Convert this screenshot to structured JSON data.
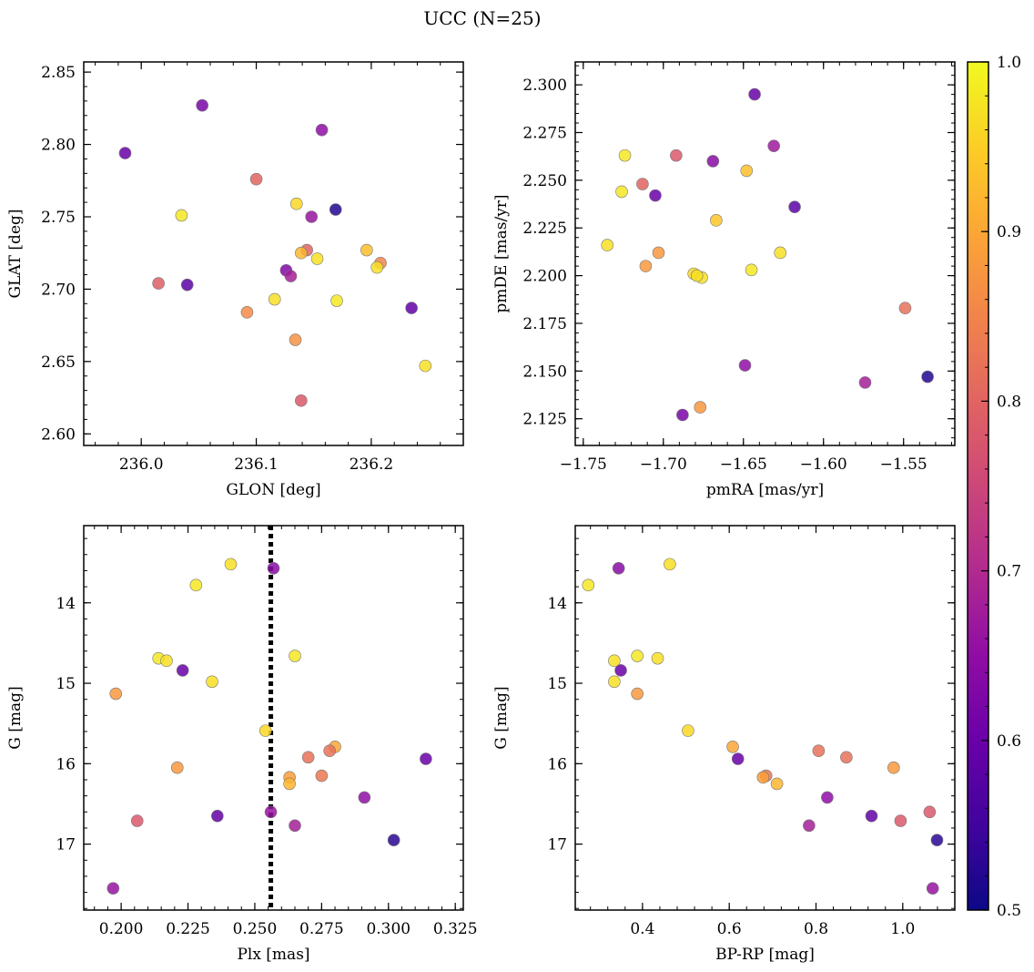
{
  "figure_title": "UCC (N=25)",
  "colorbar": {
    "range": [
      0.5,
      1.0
    ],
    "ticks": [
      "0.5",
      "0.6",
      "0.7",
      "0.8",
      "0.9",
      "1.0"
    ],
    "colormap": "plasma"
  },
  "chart_data": [
    {
      "type": "scatter",
      "id": "glon-glat",
      "xlabel": "GLON [deg]",
      "ylabel": "GLAT [deg]",
      "xlim": [
        235.95,
        236.28
      ],
      "ylim": [
        2.592,
        2.857
      ],
      "xticks": [
        236.0,
        236.1,
        236.2
      ],
      "xtick_labels": [
        "236.0",
        "236.1",
        "236.2"
      ],
      "yticks": [
        2.6,
        2.65,
        2.7,
        2.75,
        2.8,
        2.85
      ],
      "ytick_labels": [
        "2.60",
        "2.65",
        "2.70",
        "2.75",
        "2.80",
        "2.85"
      ],
      "x": [
        235.986,
        236.053,
        236.157,
        236.1,
        236.035,
        236.169,
        236.135,
        236.148,
        236.144,
        236.139,
        236.153,
        236.196,
        236.208,
        236.205,
        236.015,
        236.04,
        236.126,
        236.13,
        236.116,
        236.092,
        236.17,
        236.235,
        236.134,
        236.247,
        236.139
      ],
      "y": [
        2.794,
        2.827,
        2.81,
        2.776,
        2.751,
        2.755,
        2.759,
        2.75,
        2.727,
        2.725,
        2.721,
        2.727,
        2.718,
        2.715,
        2.704,
        2.703,
        2.713,
        2.709,
        2.693,
        2.684,
        2.692,
        2.687,
        2.665,
        2.647,
        2.623
      ],
      "membership": [
        0.6,
        0.62,
        0.65,
        0.8,
        0.98,
        0.52,
        0.96,
        0.66,
        0.8,
        0.92,
        0.97,
        0.93,
        0.85,
        0.97,
        0.79,
        0.58,
        0.63,
        0.68,
        0.97,
        0.86,
        0.98,
        0.59,
        0.87,
        0.97,
        0.78
      ]
    },
    {
      "type": "scatter",
      "id": "pmra-pmde",
      "xlabel": "pmRA [mas/yr]",
      "ylabel": "pmDE [mas/yr]",
      "xlim": [
        -1.755,
        -1.518
      ],
      "ylim": [
        2.111,
        2.312
      ],
      "xticks": [
        -1.75,
        -1.7,
        -1.65,
        -1.6,
        -1.55
      ],
      "xtick_labels": [
        "−1.75",
        "−1.70",
        "−1.65",
        "−1.60",
        "−1.55"
      ],
      "yticks": [
        2.125,
        2.15,
        2.175,
        2.2,
        2.225,
        2.25,
        2.275,
        2.3
      ],
      "ytick_labels": [
        "2.125",
        "2.150",
        "2.175",
        "2.200",
        "2.225",
        "2.250",
        "2.275",
        "2.300"
      ],
      "x": [
        -1.643,
        -1.724,
        -1.692,
        -1.631,
        -1.669,
        -1.648,
        -1.713,
        -1.726,
        -1.705,
        -1.618,
        -1.667,
        -1.735,
        -1.627,
        -1.703,
        -1.711,
        -1.681,
        -1.676,
        -1.645,
        -1.549,
        -1.535,
        -1.649,
        -1.574,
        -1.677,
        -1.688,
        -1.679
      ],
      "y": [
        2.295,
        2.263,
        2.263,
        2.268,
        2.26,
        2.255,
        2.248,
        2.244,
        2.242,
        2.236,
        2.229,
        2.216,
        2.212,
        2.212,
        2.205,
        2.201,
        2.199,
        2.203,
        2.183,
        2.147,
        2.153,
        2.144,
        2.131,
        2.127,
        2.2
      ],
      "membership": [
        0.6,
        0.98,
        0.78,
        0.67,
        0.64,
        0.93,
        0.8,
        0.98,
        0.6,
        0.58,
        0.94,
        0.97,
        0.97,
        0.88,
        0.88,
        0.96,
        0.97,
        0.98,
        0.82,
        0.52,
        0.65,
        0.68,
        0.88,
        0.62,
        0.97
      ]
    },
    {
      "type": "scatter",
      "id": "plx-g",
      "xlabel": "Plx [mas]",
      "ylabel": "G [mag]",
      "xlim": [
        0.186,
        0.328
      ],
      "ylim": [
        17.82,
        13.04
      ],
      "y_inverted": true,
      "xticks": [
        0.2,
        0.225,
        0.25,
        0.275,
        0.3,
        0.325
      ],
      "xtick_labels": [
        "0.200",
        "0.225",
        "0.250",
        "0.275",
        "0.300",
        "0.325"
      ],
      "yticks": [
        14,
        15,
        16,
        17
      ],
      "ytick_labels": [
        "14",
        "15",
        "16",
        "17"
      ],
      "vline": 0.256,
      "x": [
        0.241,
        0.257,
        0.228,
        0.214,
        0.217,
        0.265,
        0.223,
        0.234,
        0.198,
        0.254,
        0.28,
        0.278,
        0.27,
        0.314,
        0.221,
        0.263,
        0.275,
        0.263,
        0.291,
        0.236,
        0.256,
        0.206,
        0.265,
        0.302,
        0.197
      ],
      "y": [
        13.52,
        13.57,
        13.78,
        14.69,
        14.72,
        14.66,
        14.84,
        14.98,
        15.13,
        15.59,
        15.79,
        15.84,
        15.92,
        15.94,
        16.05,
        16.17,
        16.15,
        16.25,
        16.42,
        16.65,
        16.6,
        16.71,
        16.77,
        16.95,
        17.55
      ],
      "membership": [
        0.97,
        0.64,
        0.98,
        0.98,
        0.97,
        0.98,
        0.6,
        0.97,
        0.88,
        0.96,
        0.9,
        0.82,
        0.82,
        0.6,
        0.88,
        0.89,
        0.83,
        0.92,
        0.65,
        0.59,
        0.66,
        0.78,
        0.68,
        0.53,
        0.66
      ]
    },
    {
      "type": "scatter",
      "id": "bprp-g",
      "xlabel": "BP-RP [mag]",
      "ylabel": "G [mag]",
      "xlim": [
        0.245,
        1.12
      ],
      "ylim": [
        17.82,
        13.04
      ],
      "y_inverted": true,
      "xticks": [
        0.4,
        0.6,
        0.8,
        1.0
      ],
      "xtick_labels": [
        "0.4",
        "0.6",
        "0.8",
        "1.0"
      ],
      "yticks": [
        14,
        15,
        16,
        17
      ],
      "ytick_labels": [
        "14",
        "15",
        "16",
        "17"
      ],
      "x": [
        0.463,
        0.345,
        0.275,
        0.335,
        0.388,
        0.435,
        0.35,
        0.335,
        0.388,
        0.505,
        0.608,
        0.806,
        0.87,
        0.62,
        0.979,
        0.685,
        0.678,
        0.71,
        0.826,
        0.928,
        1.062,
        0.995,
        0.784,
        1.079,
        1.069
      ],
      "y": [
        13.52,
        13.57,
        13.78,
        14.72,
        14.66,
        14.69,
        14.84,
        14.98,
        15.13,
        15.59,
        15.79,
        15.84,
        15.92,
        15.94,
        16.05,
        16.15,
        16.17,
        16.25,
        16.42,
        16.65,
        16.6,
        16.71,
        16.77,
        16.95,
        17.55
      ],
      "membership": [
        0.97,
        0.64,
        0.98,
        0.97,
        0.98,
        0.97,
        0.6,
        0.97,
        0.88,
        0.96,
        0.9,
        0.82,
        0.82,
        0.6,
        0.88,
        0.83,
        0.89,
        0.92,
        0.65,
        0.59,
        0.78,
        0.78,
        0.68,
        0.53,
        0.66
      ]
    }
  ]
}
